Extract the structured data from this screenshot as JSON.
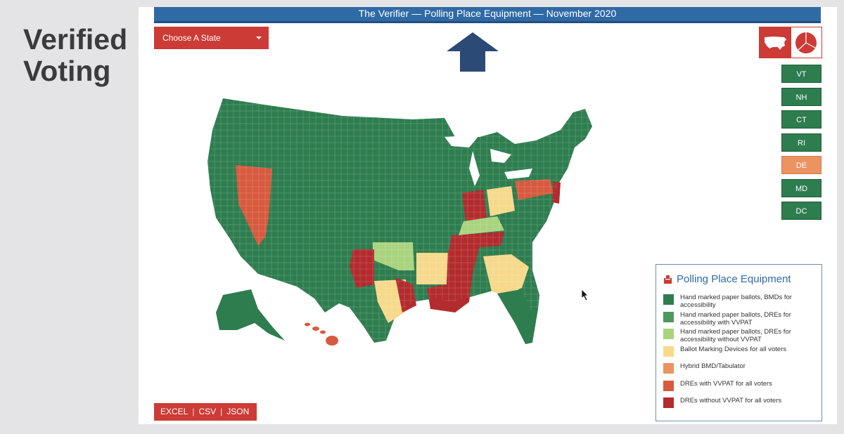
{
  "slide": {
    "title_line1": "Verified",
    "title_line2": "Voting"
  },
  "header": {
    "title": "The Verifier — Polling Place Equipment — November 2020"
  },
  "state_select": {
    "label": "Choose A State"
  },
  "view_toggle": {
    "map_icon": "us-map-icon",
    "pie_icon": "pie-chart-icon"
  },
  "small_states": [
    {
      "label": "VT",
      "color": "#2e7d4f"
    },
    {
      "label": "NH",
      "color": "#2e7d4f"
    },
    {
      "label": "CT",
      "color": "#2e7d4f"
    },
    {
      "label": "RI",
      "color": "#2e7d4f"
    },
    {
      "label": "DE",
      "color": "#ec9362"
    },
    {
      "label": "MD",
      "color": "#2e7d4f"
    },
    {
      "label": "DC",
      "color": "#2e7d4f"
    }
  ],
  "legend": {
    "title": "Polling Place Equipment",
    "items": [
      {
        "label": "Hand marked paper ballots, BMDs for accessibility",
        "color": "#2e7d4f"
      },
      {
        "label": "Hand marked paper ballots, DREs for accessibility with VVPAT",
        "color": "#4e9a5e"
      },
      {
        "label": "Hand marked paper ballots, DREs for accessibility without VVPAT",
        "color": "#a9d37e"
      },
      {
        "label": "Ballot Marking Devices for all voters",
        "color": "#f6d98b"
      },
      {
        "label": "Hybrid BMD/Tabulator",
        "color": "#ec9362"
      },
      {
        "label": "DREs with VVPAT for all voters",
        "color": "#d75a3e"
      },
      {
        "label": "DREs without VVPAT for all voters",
        "color": "#b22b2d"
      }
    ]
  },
  "export": {
    "excel": "EXCEL",
    "csv": "CSV",
    "json": "JSON",
    "separator": "|"
  },
  "colors": {
    "accent_red": "#cc3b35",
    "header_blue": "#2f6aa5",
    "arrow_navy": "#2b4a75",
    "base_green": "#2e7d4f"
  }
}
